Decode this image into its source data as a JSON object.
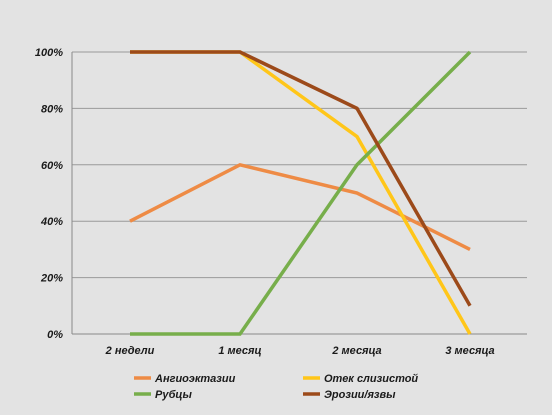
{
  "chart_data": {
    "type": "line",
    "categories": [
      "2 недели",
      "1 месяц",
      "2 месяца",
      "3 месяца"
    ],
    "yticks": [
      "0%",
      "20%",
      "40%",
      "60%",
      "80%",
      "100%"
    ],
    "ylim": [
      0,
      100
    ],
    "grid": true,
    "legend_position": "bottom",
    "series": [
      {
        "name": "Ангиоэктазии",
        "color": "#ee8b45",
        "values": [
          40,
          60,
          50,
          30
        ]
      },
      {
        "name": "Отек слизистой",
        "color": "#ffc619",
        "values": [
          100,
          100,
          70,
          0
        ]
      },
      {
        "name": "Рубцы",
        "color": "#77ae4b",
        "values": [
          0,
          0,
          60,
          100
        ]
      },
      {
        "name": "Эрозии/язвы",
        "color": "#9c4a1a",
        "values": [
          100,
          100,
          80,
          10
        ]
      }
    ]
  }
}
